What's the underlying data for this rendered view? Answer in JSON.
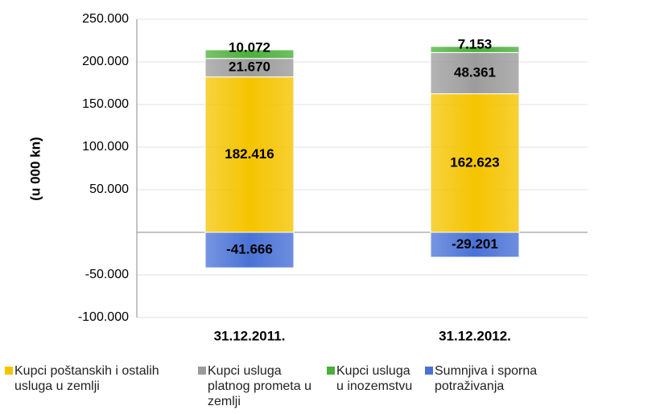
{
  "chart_data": {
    "type": "stacked_bar",
    "y_label": "(u 000 kn)",
    "categories": [
      "31.12.2011.",
      "31.12.2012."
    ],
    "series": [
      {
        "name": "Kupci poštanskih i ostalih usluga u zemlji",
        "color": "#f5c400",
        "values": [
          182416,
          162623
        ],
        "value_labels": [
          "182.416",
          "162.623"
        ]
      },
      {
        "name": "Kupci usluga platnog prometa u zemlji",
        "color": "#9c9c9c",
        "values": [
          21670,
          48361
        ],
        "value_labels": [
          "21.670",
          "48.361"
        ]
      },
      {
        "name": "Kupci usluga u inozemstvu",
        "color": "#4caf3c",
        "values": [
          10072,
          7153
        ],
        "value_labels": [
          "10.072",
          "7.153"
        ]
      },
      {
        "name": "Sumnjiva i sporna potraživanja",
        "color": "#4a72d6",
        "values": [
          -41666,
          -29201
        ],
        "value_labels": [
          "-41.666",
          "-29.201"
        ]
      }
    ],
    "ylim": [
      -100000,
      250000
    ],
    "yticks": [
      {
        "value": -100000,
        "label": "-100.000"
      },
      {
        "value": -50000,
        "label": "-50.000"
      },
      {
        "value": 50000,
        "label": "50.000"
      },
      {
        "value": 100000,
        "label": "100.000"
      },
      {
        "value": 150000,
        "label": "150.000"
      },
      {
        "value": 200000,
        "label": "200.000"
      },
      {
        "value": 250000,
        "label": "250.000"
      }
    ],
    "grid": true,
    "legend": "bottom"
  }
}
